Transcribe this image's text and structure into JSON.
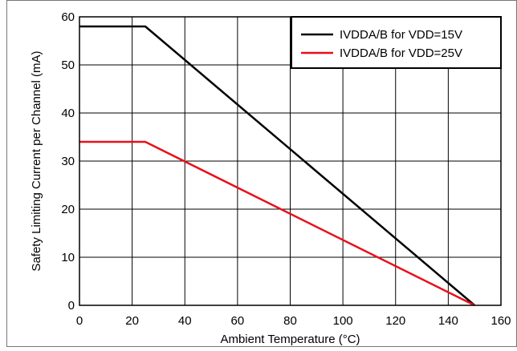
{
  "chart_data": {
    "type": "line",
    "title": "",
    "xlabel": "Ambient Temperature (°C)",
    "ylabel": "Safety Limiting Current per Channel (mA)",
    "xlim": [
      0,
      160
    ],
    "ylim": [
      0,
      60
    ],
    "x_ticks": [
      0,
      20,
      40,
      60,
      80,
      100,
      120,
      140,
      160
    ],
    "y_ticks": [
      0,
      10,
      20,
      30,
      40,
      50,
      60
    ],
    "grid": true,
    "legend_position": "top-right",
    "series": [
      {
        "name": "IVDDA/B for VDD=15V",
        "color": "#000000",
        "points": [
          [
            0,
            58
          ],
          [
            25,
            58
          ],
          [
            150,
            0
          ]
        ]
      },
      {
        "name": "IVDDA/B for VDD=25V",
        "color": "#e8101a",
        "points": [
          [
            0,
            34
          ],
          [
            25,
            34
          ],
          [
            150,
            0
          ]
        ]
      }
    ]
  }
}
